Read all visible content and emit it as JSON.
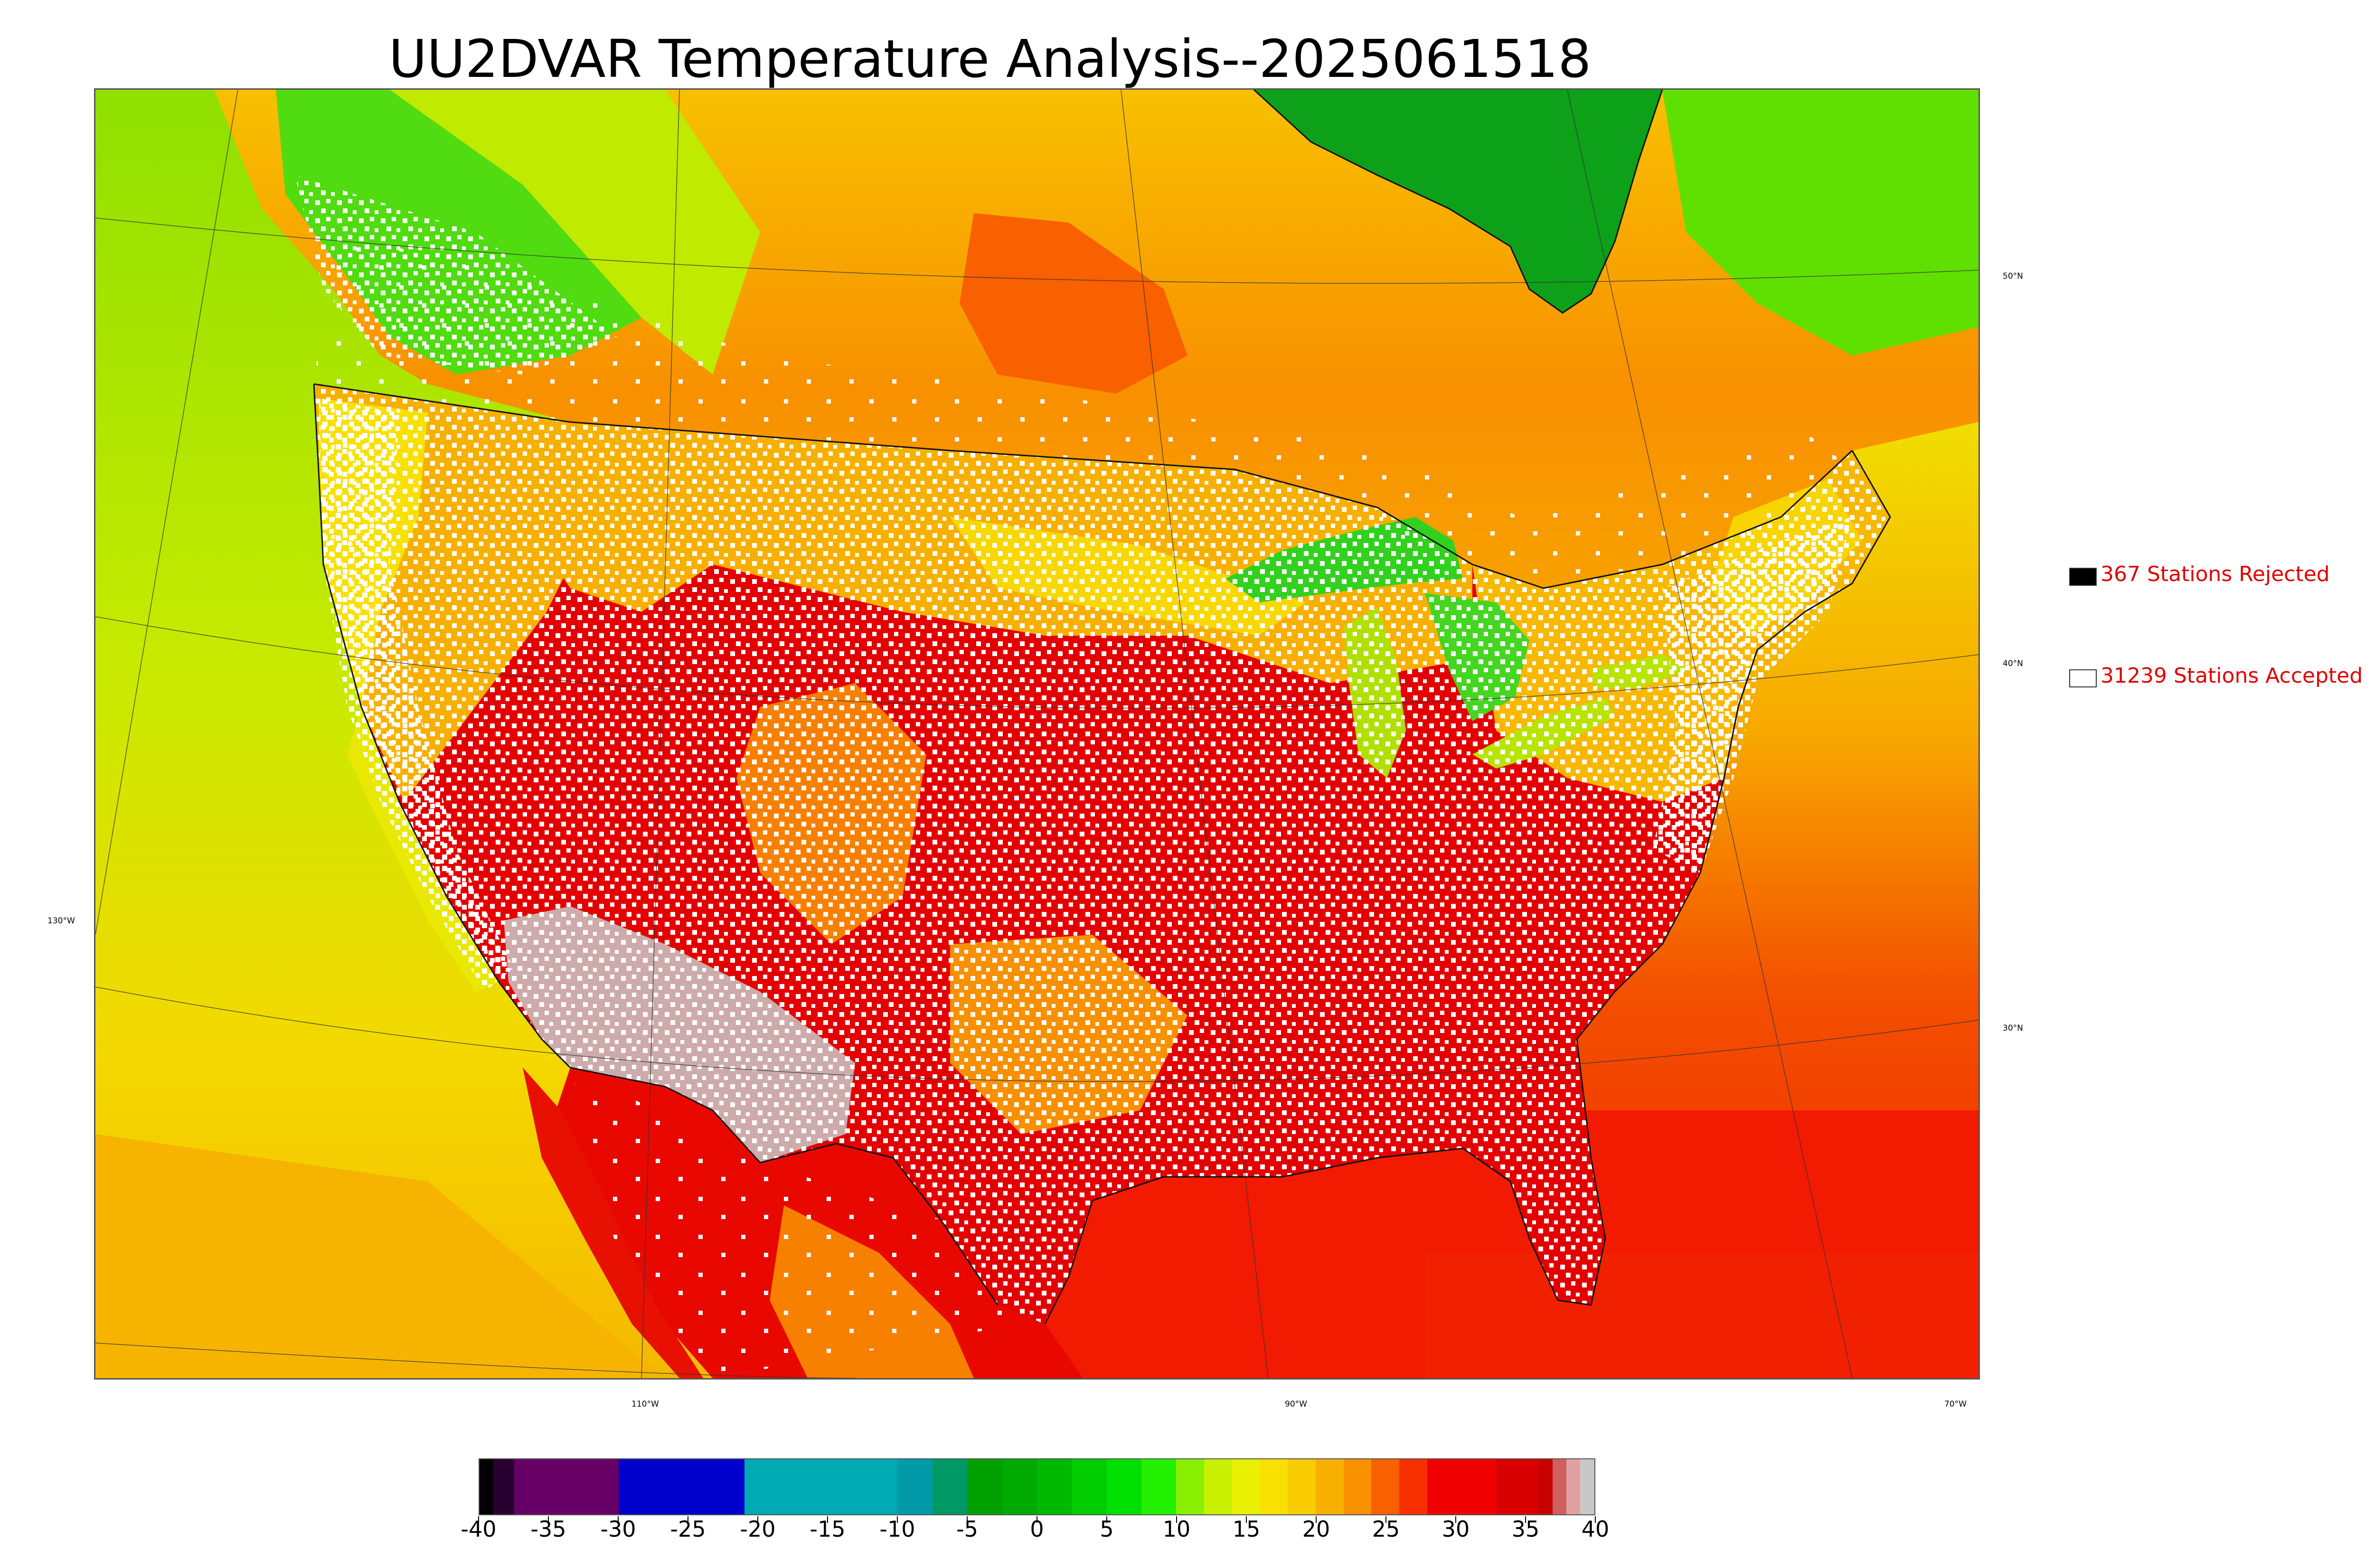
{
  "title": "UU2DVAR Temperature Analysis--2025061518",
  "map": {
    "graticule_labels": {
      "lat": [
        "50°N",
        "40°N",
        "30°N"
      ],
      "lon_left": [
        "130°W"
      ],
      "lon_bottom": [
        "110°W",
        "90°W",
        "70°W"
      ]
    },
    "colors": {
      "ocean_pacific_north": "#a8e400",
      "ocean_pacific_south": "#f6c800",
      "ocean_gulf": "#f21800",
      "ocean_atlantic": "#f33a00",
      "hudson_bay": "#0da019",
      "great_lakes": "#33d11f",
      "land_hot": "#e00000",
      "land_warm": "#f86a00",
      "land_mild": "#f8d000",
      "land_cool": "#22dd00",
      "desert_extreme": "#c9c9c9",
      "station_accepted": "#ffffff",
      "station_rejected": "#000000"
    }
  },
  "legend": {
    "rejected_label": "367 Stations Rejected",
    "accepted_label": "31239 Stations Accepted",
    "rejected_color": "#000000",
    "accepted_color": "#ffffff"
  },
  "colorbar": {
    "min": -40,
    "max": 40,
    "tick_labels": [
      "-40",
      "-35",
      "-30",
      "-25",
      "-20",
      "-15",
      "-10",
      "-5",
      "0",
      "5",
      "10",
      "15",
      "20",
      "25",
      "30",
      "35",
      "40"
    ],
    "segments": [
      {
        "from": -40,
        "to": -39,
        "color": "#050005"
      },
      {
        "from": -39,
        "to": -37.5,
        "color": "#2a0030"
      },
      {
        "from": -37.5,
        "to": -30,
        "color": "#660066"
      },
      {
        "from": -30,
        "to": -21,
        "color": "#0000cc"
      },
      {
        "from": -21,
        "to": -10,
        "color": "#00aab4"
      },
      {
        "from": -10,
        "to": -7.5,
        "color": "#009aa8"
      },
      {
        "from": -7.5,
        "to": -5,
        "color": "#009966"
      },
      {
        "from": -5,
        "to": -2.5,
        "color": "#00a000"
      },
      {
        "from": -2.5,
        "to": 0,
        "color": "#00aa00"
      },
      {
        "from": 0,
        "to": 2.5,
        "color": "#00b800"
      },
      {
        "from": 2.5,
        "to": 5,
        "color": "#00cc00"
      },
      {
        "from": 5,
        "to": 7.5,
        "color": "#00e000"
      },
      {
        "from": 7.5,
        "to": 10,
        "color": "#22f000"
      },
      {
        "from": 10,
        "to": 12,
        "color": "#88f000"
      },
      {
        "from": 12,
        "to": 14,
        "color": "#c8f000"
      },
      {
        "from": 14,
        "to": 16,
        "color": "#e8f000"
      },
      {
        "from": 16,
        "to": 18,
        "color": "#f8e000"
      },
      {
        "from": 18,
        "to": 20,
        "color": "#f8cc00"
      },
      {
        "from": 20,
        "to": 22,
        "color": "#f8b000"
      },
      {
        "from": 22,
        "to": 24,
        "color": "#f89000"
      },
      {
        "from": 24,
        "to": 26,
        "color": "#f86000"
      },
      {
        "from": 26,
        "to": 28,
        "color": "#f83000"
      },
      {
        "from": 28,
        "to": 33,
        "color": "#f00000"
      },
      {
        "from": 33,
        "to": 36,
        "color": "#d80000"
      },
      {
        "from": 36,
        "to": 37,
        "color": "#c80000"
      },
      {
        "from": 37,
        "to": 38,
        "color": "#d06060"
      },
      {
        "from": 38,
        "to": 39,
        "color": "#e0a0a0"
      },
      {
        "from": 39,
        "to": 40,
        "color": "#c8c8c8"
      }
    ]
  }
}
